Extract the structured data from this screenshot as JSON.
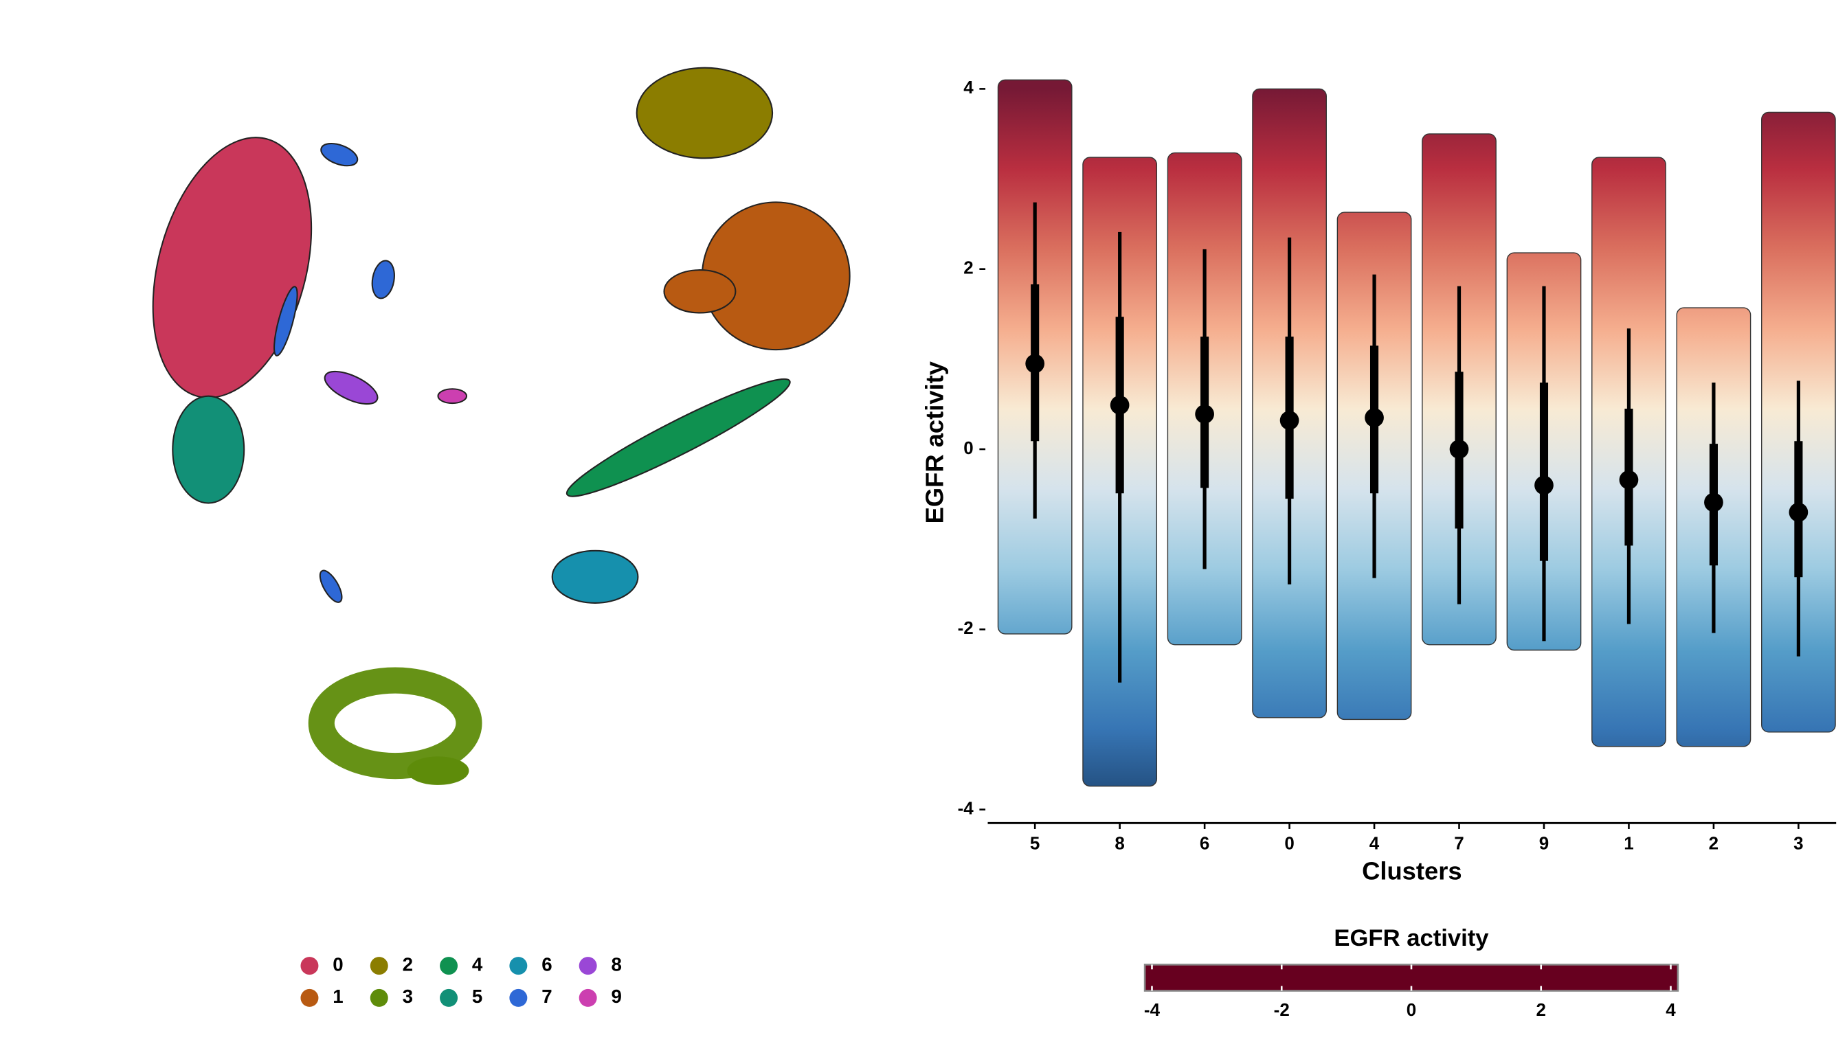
{
  "chart_data": [
    {
      "type": "umap",
      "series": [
        {
          "name": "0",
          "color": "#c9375a"
        },
        {
          "name": "1",
          "color": "#b85a12"
        },
        {
          "name": "2",
          "color": "#8b7d00"
        },
        {
          "name": "3",
          "color": "#5e8c0a"
        },
        {
          "name": "4",
          "color": "#0f9150"
        },
        {
          "name": "5",
          "color": "#129077"
        },
        {
          "name": "6",
          "color": "#1690ad"
        },
        {
          "name": "7",
          "color": "#2e68d6"
        },
        {
          "name": "8",
          "color": "#9a47d6"
        },
        {
          "name": "9",
          "color": "#cc3fb0"
        }
      ]
    },
    {
      "type": "jitter",
      "ylabel": "EGFR activity",
      "xlabel": "Clusters",
      "categories": [
        "5",
        "8",
        "6",
        "0",
        "4",
        "7",
        "9",
        "1",
        "2",
        "3"
      ],
      "medians": [
        0.95,
        0.49,
        0.39,
        0.32,
        0.35,
        0.0,
        -0.4,
        -0.34,
        -0.59,
        -0.7
      ],
      "inner_high": [
        1.83,
        1.47,
        1.25,
        1.25,
        1.15,
        0.86,
        0.74,
        0.45,
        0.06,
        0.09
      ],
      "inner_low": [
        0.09,
        -0.49,
        -0.43,
        -0.55,
        -0.49,
        -0.88,
        -1.24,
        -1.07,
        -1.29,
        -1.42
      ],
      "outer_high": [
        2.74,
        2.41,
        2.22,
        2.35,
        1.94,
        1.81,
        1.81,
        1.34,
        0.74,
        0.76
      ],
      "outer_low": [
        -0.77,
        -2.59,
        -1.33,
        -1.5,
        -1.43,
        -1.72,
        -2.13,
        -1.94,
        -2.04,
        -2.3
      ],
      "points_max": [
        4.1,
        3.24,
        3.29,
        4.0,
        2.63,
        3.5,
        2.18,
        3.24,
        1.57,
        3.74
      ],
      "points_min": [
        -2.05,
        -3.74,
        -2.17,
        -2.98,
        -3.0,
        -2.17,
        -2.23,
        -3.3,
        -3.3,
        -3.14
      ],
      "ylim": [
        -4.15,
        4.3
      ],
      "yticks": [
        -4,
        -2,
        0,
        2,
        4
      ],
      "colorbar": {
        "title": "EGFR activity",
        "lim": [
          -4,
          4
        ],
        "ticks": [
          -4,
          -2,
          0,
          2,
          4
        ],
        "colors": [
          "#67001f",
          "#b2182b",
          "#d6604d",
          "#f4a582",
          "#f7e8cf",
          "#d1e0ea",
          "#92c5de",
          "#4393c3",
          "#2166ac",
          "#053061"
        ]
      }
    }
  ]
}
